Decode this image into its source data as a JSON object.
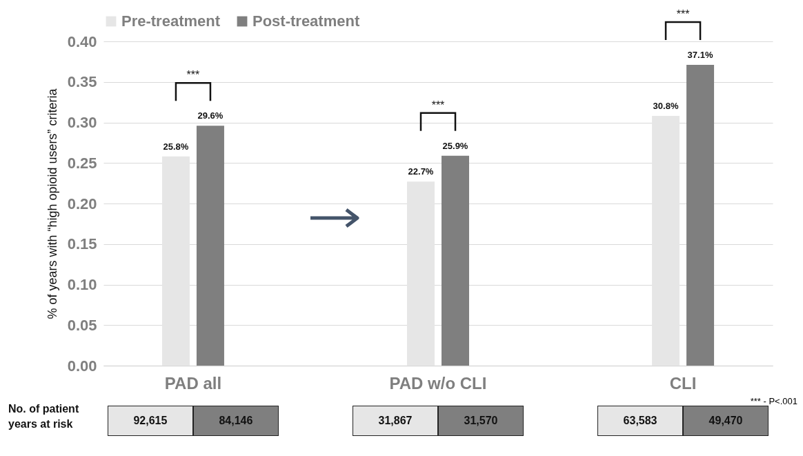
{
  "chart_data": {
    "type": "bar",
    "ylabel": "% of years with “high opioid users” criteria",
    "categories": [
      "PAD all",
      "PAD w/o CLI",
      "CLI"
    ],
    "series": [
      {
        "name": "Pre-treatment",
        "color": "#e6e6e6",
        "values": [
          0.258,
          0.227,
          0.308
        ],
        "value_labels": [
          "25.8%",
          "22.7%",
          "30.8%"
        ]
      },
      {
        "name": "Post-treatment",
        "color": "#7f7f7f",
        "values": [
          0.296,
          0.259,
          0.371
        ],
        "value_labels": [
          "29.6%",
          "25.9%",
          "37.1%"
        ]
      }
    ],
    "ylim": [
      0,
      0.4
    ],
    "yticks": [
      {
        "value": 0,
        "label": "0.00"
      },
      {
        "value": 0.05,
        "label": "0.05"
      },
      {
        "value": 0.1,
        "label": "0.10"
      },
      {
        "value": 0.15,
        "label": "0.15"
      },
      {
        "value": 0.2,
        "label": "0.20"
      },
      {
        "value": 0.25,
        "label": "0.25"
      },
      {
        "value": 0.3,
        "label": "0.30"
      },
      {
        "value": 0.35,
        "label": "0.35"
      },
      {
        "value": 0.4,
        "label": "0.40"
      }
    ],
    "grid": "y",
    "legend": "top",
    "annotations": [
      "***",
      "***",
      "***",
      "*** - P<.001",
      "No. of patient years at risk",
      "92,615",
      "84,146",
      "31,867",
      "31,570",
      "63,583",
      "49,470"
    ]
  }
}
